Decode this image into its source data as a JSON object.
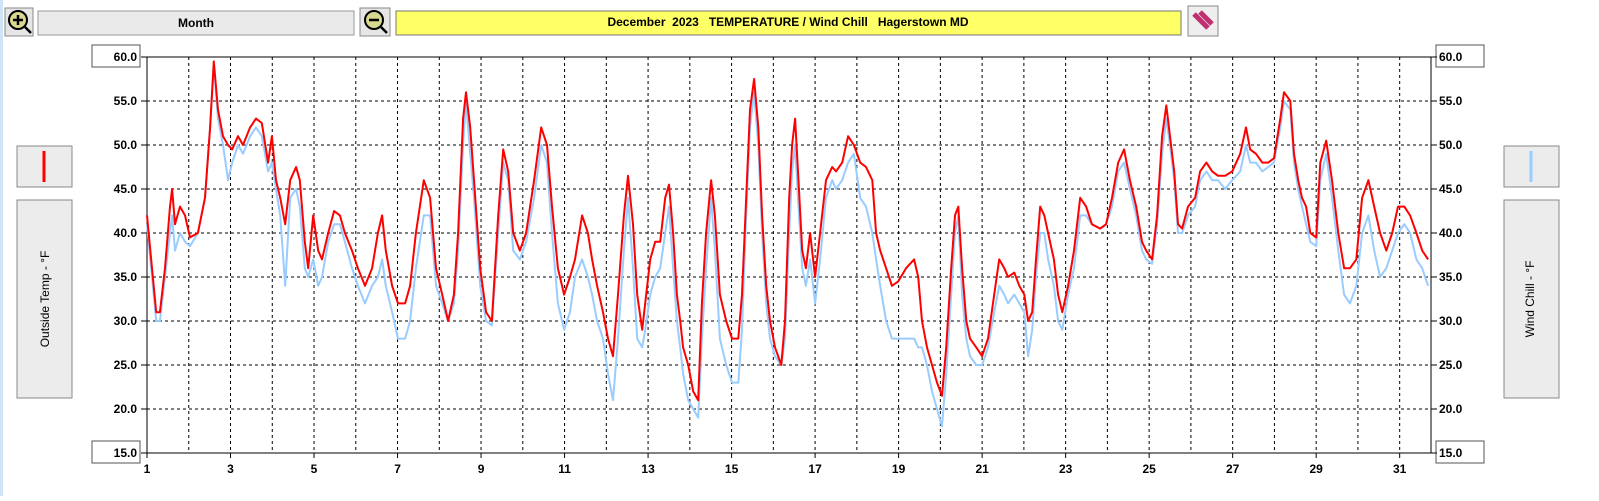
{
  "ui": {
    "range_button": "Month",
    "left_axis_title": "Outside Temp - °F",
    "right_axis_title": "Wind Chill - °F"
  },
  "chart_data": {
    "type": "line",
    "title": "December  2023   TEMPERATURE / Wind Chill   Hagerstown MD",
    "x": [
      1.0,
      1.12,
      1.22,
      1.31,
      1.43,
      1.55,
      1.6,
      1.67,
      1.79,
      1.91,
      2.03,
      2.22,
      2.39,
      2.51,
      2.6,
      2.7,
      2.82,
      2.94,
      3.04,
      3.18,
      3.3,
      3.47,
      3.61,
      3.75,
      3.9,
      3.99,
      4.09,
      4.19,
      4.31,
      4.43,
      4.57,
      4.66,
      4.78,
      4.86,
      4.98,
      5.1,
      5.19,
      5.34,
      5.48,
      5.62,
      5.74,
      5.91,
      6.05,
      6.22,
      6.39,
      6.53,
      6.63,
      6.72,
      6.87,
      7.01,
      7.18,
      7.3,
      7.44,
      7.63,
      7.78,
      7.92,
      8.07,
      8.21,
      8.35,
      8.45,
      8.57,
      8.64,
      8.74,
      8.83,
      8.98,
      9.12,
      9.26,
      9.41,
      9.53,
      9.65,
      9.77,
      9.93,
      10.08,
      10.27,
      10.44,
      10.58,
      10.7,
      10.84,
      10.99,
      11.13,
      11.25,
      11.42,
      11.56,
      11.66,
      11.78,
      11.92,
      12.04,
      12.16,
      12.28,
      12.42,
      12.52,
      12.64,
      12.74,
      12.86,
      12.93,
      13.05,
      13.17,
      13.29,
      13.41,
      13.5,
      13.6,
      13.69,
      13.77,
      13.84,
      13.96,
      14.08,
      14.2,
      14.29,
      14.39,
      14.51,
      14.6,
      14.72,
      14.87,
      15.01,
      15.16,
      15.25,
      15.35,
      15.44,
      15.54,
      15.64,
      15.73,
      15.83,
      15.92,
      16.04,
      16.19,
      16.28,
      16.38,
      16.45,
      16.52,
      16.59,
      16.69,
      16.78,
      16.88,
      17.0,
      17.12,
      17.26,
      17.41,
      17.5,
      17.65,
      17.79,
      17.93,
      18.08,
      18.22,
      18.37,
      18.46,
      18.56,
      18.7,
      18.84,
      18.99,
      19.18,
      19.37,
      19.47,
      19.56,
      19.68,
      19.8,
      19.92,
      20.04,
      20.14,
      20.26,
      20.35,
      20.43,
      20.52,
      20.62,
      20.71,
      20.86,
      21.0,
      21.14,
      21.29,
      21.41,
      21.53,
      21.62,
      21.77,
      21.89,
      22.01,
      22.1,
      22.2,
      22.29,
      22.39,
      22.49,
      22.58,
      22.72,
      22.82,
      22.92,
      23.06,
      23.2,
      23.35,
      23.49,
      23.63,
      23.83,
      23.97,
      24.11,
      24.26,
      24.4,
      24.54,
      24.69,
      24.83,
      24.93,
      25.07,
      25.19,
      25.31,
      25.41,
      25.5,
      25.6,
      25.69,
      25.79,
      25.93,
      26.1,
      26.22,
      26.37,
      26.51,
      26.65,
      26.82,
      26.99,
      27.18,
      27.32,
      27.42,
      27.56,
      27.71,
      27.85,
      27.99,
      28.14,
      28.23,
      28.38,
      28.47,
      28.57,
      28.66,
      28.76,
      28.86,
      29.0,
      29.1,
      29.24,
      29.38,
      29.53,
      29.67,
      29.81,
      29.96,
      30.1,
      30.25,
      30.39,
      30.53,
      30.68,
      30.82,
      30.96,
      31.11,
      31.25,
      31.4,
      31.54,
      31.68
    ],
    "series": [
      {
        "name": "Wind Chill",
        "color": "#99ccff",
        "axis": "y2",
        "values": [
          41,
          35,
          30,
          30,
          35,
          40,
          42,
          38,
          40,
          39,
          38.5,
          40,
          44,
          52,
          59,
          53,
          50,
          46,
          48,
          50,
          49,
          51,
          52,
          51,
          47,
          48,
          45,
          42,
          34,
          44,
          45,
          43,
          36,
          35,
          37,
          34,
          35,
          39,
          41,
          41,
          39,
          36,
          34,
          32,
          34,
          35,
          37,
          34,
          31,
          28,
          28,
          30,
          36,
          42,
          42,
          34,
          32,
          30,
          32,
          38,
          50,
          55,
          49,
          44,
          34,
          30,
          29.5,
          40,
          48,
          46,
          38,
          37,
          39,
          44,
          50,
          48,
          40,
          32,
          29,
          31,
          35,
          37,
          35,
          33,
          30,
          28,
          24,
          21,
          28,
          38,
          44,
          36,
          28,
          27,
          29,
          33,
          35,
          36,
          40,
          43,
          36,
          30,
          27,
          24,
          21,
          20,
          19,
          28,
          36,
          44,
          38,
          28,
          25,
          23,
          23,
          29,
          42,
          52,
          56,
          50,
          40,
          32,
          28,
          26,
          25,
          28,
          40,
          47,
          50,
          44,
          36,
          34,
          37,
          32,
          37,
          44,
          46,
          45,
          46,
          48,
          49,
          44,
          43,
          40,
          37,
          34,
          30,
          28,
          28,
          28,
          28,
          27,
          27,
          25,
          22,
          20,
          18,
          24,
          33,
          40,
          42,
          33,
          28,
          26,
          25,
          25,
          27,
          31,
          34,
          33,
          32,
          33,
          32,
          31,
          26,
          29,
          35,
          40,
          40,
          37,
          34,
          30,
          29,
          33,
          36,
          42,
          42,
          41,
          40.5,
          41,
          43,
          47,
          48,
          45,
          42,
          38,
          37,
          36.5,
          41,
          49,
          53,
          50,
          46,
          40,
          40,
          42,
          43,
          46,
          47,
          46,
          46,
          45,
          46,
          47,
          50,
          48,
          48,
          47,
          47.5,
          48,
          52,
          55,
          54,
          48,
          45,
          43,
          41,
          39,
          38.5,
          46,
          49,
          44,
          38,
          33,
          32,
          34,
          40,
          42,
          38,
          35,
          36,
          38,
          40,
          41,
          40,
          37,
          36,
          34
        ]
      },
      {
        "name": "Outside Temp",
        "color": "#ff0000",
        "values": [
          42,
          36,
          31,
          31,
          36,
          43,
          45,
          41,
          43,
          42,
          39.5,
          40,
          44,
          52,
          59.5,
          54,
          51,
          50,
          49.5,
          51,
          50,
          52,
          53,
          52.5,
          48,
          51,
          46,
          44,
          41,
          46,
          47.5,
          46,
          39,
          36,
          42,
          38,
          37,
          40,
          42.5,
          42,
          40,
          38,
          36,
          34,
          36,
          40,
          42,
          38,
          34,
          32,
          32,
          34,
          40,
          46,
          44,
          36,
          33,
          30,
          33,
          40,
          53,
          56,
          52,
          46,
          36,
          31,
          30,
          42,
          49.5,
          47,
          40,
          38,
          40,
          46,
          52,
          50,
          43,
          36,
          33,
          35,
          37,
          42,
          40,
          37,
          34,
          31,
          28,
          26,
          33,
          42,
          46.5,
          41,
          33,
          29,
          32,
          37,
          39,
          39,
          44,
          45.5,
          40,
          33,
          30,
          27,
          25,
          22,
          21,
          32,
          40,
          46,
          42,
          33,
          30,
          28,
          28,
          33,
          44,
          54,
          57.5,
          52,
          42,
          34,
          30,
          27,
          25,
          30,
          44,
          50,
          53,
          47,
          38,
          36,
          40,
          35,
          40,
          46,
          47.5,
          47,
          48,
          51,
          50,
          48,
          47.5,
          46,
          40,
          38,
          36,
          34,
          34.5,
          36,
          37,
          35,
          30,
          27,
          25,
          23,
          21.5,
          27,
          36,
          42,
          43,
          36,
          30,
          28,
          27,
          26,
          28,
          33,
          37,
          36,
          35,
          35.5,
          34,
          33,
          30,
          31,
          37,
          43,
          42,
          40,
          37,
          33,
          31,
          34,
          38,
          44,
          43,
          41,
          40.5,
          41,
          44,
          48,
          49.5,
          46,
          43,
          39,
          38,
          37,
          42,
          51,
          54.5,
          51,
          47,
          41,
          40.5,
          43,
          44,
          47,
          48,
          47,
          46.5,
          46.5,
          47,
          49,
          52,
          49.5,
          49,
          48,
          48,
          48.5,
          53,
          56,
          55,
          49,
          46,
          44,
          43,
          40,
          39.5,
          48,
          50.5,
          46,
          40,
          36,
          36,
          37,
          44,
          46,
          43,
          40,
          38,
          40,
          43,
          43,
          42,
          40,
          38,
          37
        ]
      }
    ],
    "xlim": [
      1,
      31.75
    ],
    "xticks": [
      1,
      3,
      5,
      7,
      9,
      11,
      13,
      15,
      17,
      19,
      21,
      23,
      25,
      27,
      29,
      31
    ],
    "x_minor_grid": [
      2,
      4,
      6,
      8,
      10,
      12,
      14,
      16,
      18,
      20,
      22,
      24,
      26,
      28,
      30
    ],
    "ylim": [
      15,
      60
    ],
    "yticks": [
      {
        "value": 15,
        "label": "15.0"
      },
      {
        "value": 20,
        "label": "20.0"
      },
      {
        "value": 25,
        "label": "25.0"
      },
      {
        "value": 30,
        "label": "30.0"
      },
      {
        "value": 35,
        "label": "35.0"
      },
      {
        "value": 40,
        "label": "40.0"
      },
      {
        "value": 45,
        "label": "45.0"
      },
      {
        "value": 50,
        "label": "50.0"
      },
      {
        "value": 55,
        "label": "55.0"
      },
      {
        "value": 60,
        "label": "60.0"
      }
    ],
    "y2lim": [
      15,
      60
    ],
    "y2ticks": [
      {
        "value": 15,
        "label": "15.0"
      },
      {
        "value": 20,
        "label": "20.0"
      },
      {
        "value": 25,
        "label": "25.0"
      },
      {
        "value": 30,
        "label": "30.0"
      },
      {
        "value": 35,
        "label": "35.0"
      },
      {
        "value": 40,
        "label": "40.0"
      },
      {
        "value": 45,
        "label": "45.0"
      },
      {
        "value": 50,
        "label": "50.0"
      },
      {
        "value": 55,
        "label": "55.0"
      },
      {
        "value": 60,
        "label": "60.0"
      }
    ],
    "grid": true
  }
}
